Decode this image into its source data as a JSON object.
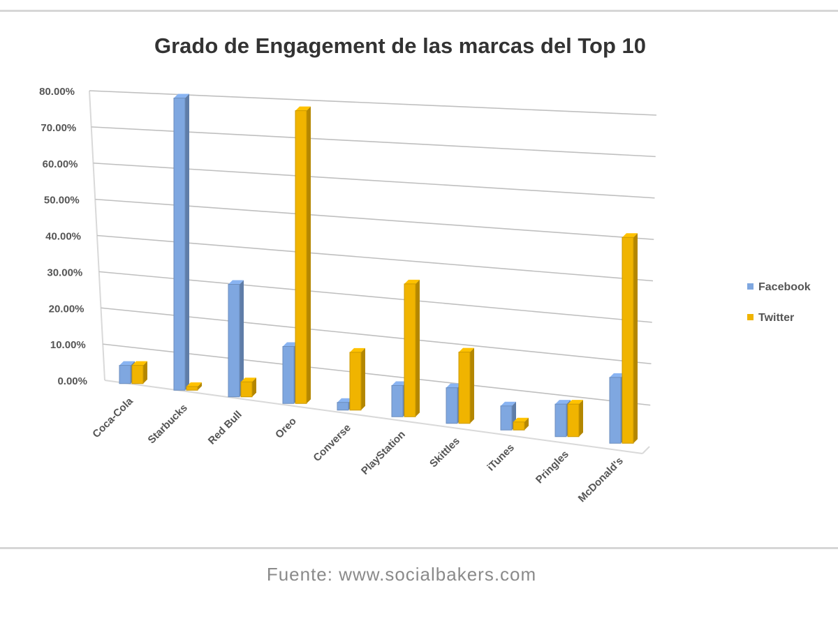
{
  "chart_data": {
    "type": "bar",
    "title": "Grado de Engagement de las marcas del Top 10",
    "categories": [
      "Coca-Cola",
      "Starbucks",
      "Red Bull",
      "Oreo",
      "Converse",
      "PlayStation",
      "Skittles",
      "iTunes",
      "Pringles",
      "McDonald's"
    ],
    "series": [
      {
        "name": "Facebook",
        "color": "#7fa7e0",
        "values": [
          5,
          79,
          30,
          15,
          2,
          8,
          9,
          6,
          8,
          16
        ]
      },
      {
        "name": "Twitter",
        "color": "#f0b400",
        "values": [
          5,
          1,
          4,
          77,
          15,
          34,
          18,
          2,
          8,
          50
        ]
      }
    ],
    "y_tick_labels": [
      "0.00%",
      "10.00%",
      "20.00%",
      "30.00%",
      "40.00%",
      "50.00%",
      "60.00%",
      "70.00%",
      "80.00%"
    ],
    "ylim": [
      0,
      80
    ],
    "y_unit": "%",
    "grid": true,
    "legend_position": "right",
    "source": "Fuente: www.socialbakers.com"
  }
}
